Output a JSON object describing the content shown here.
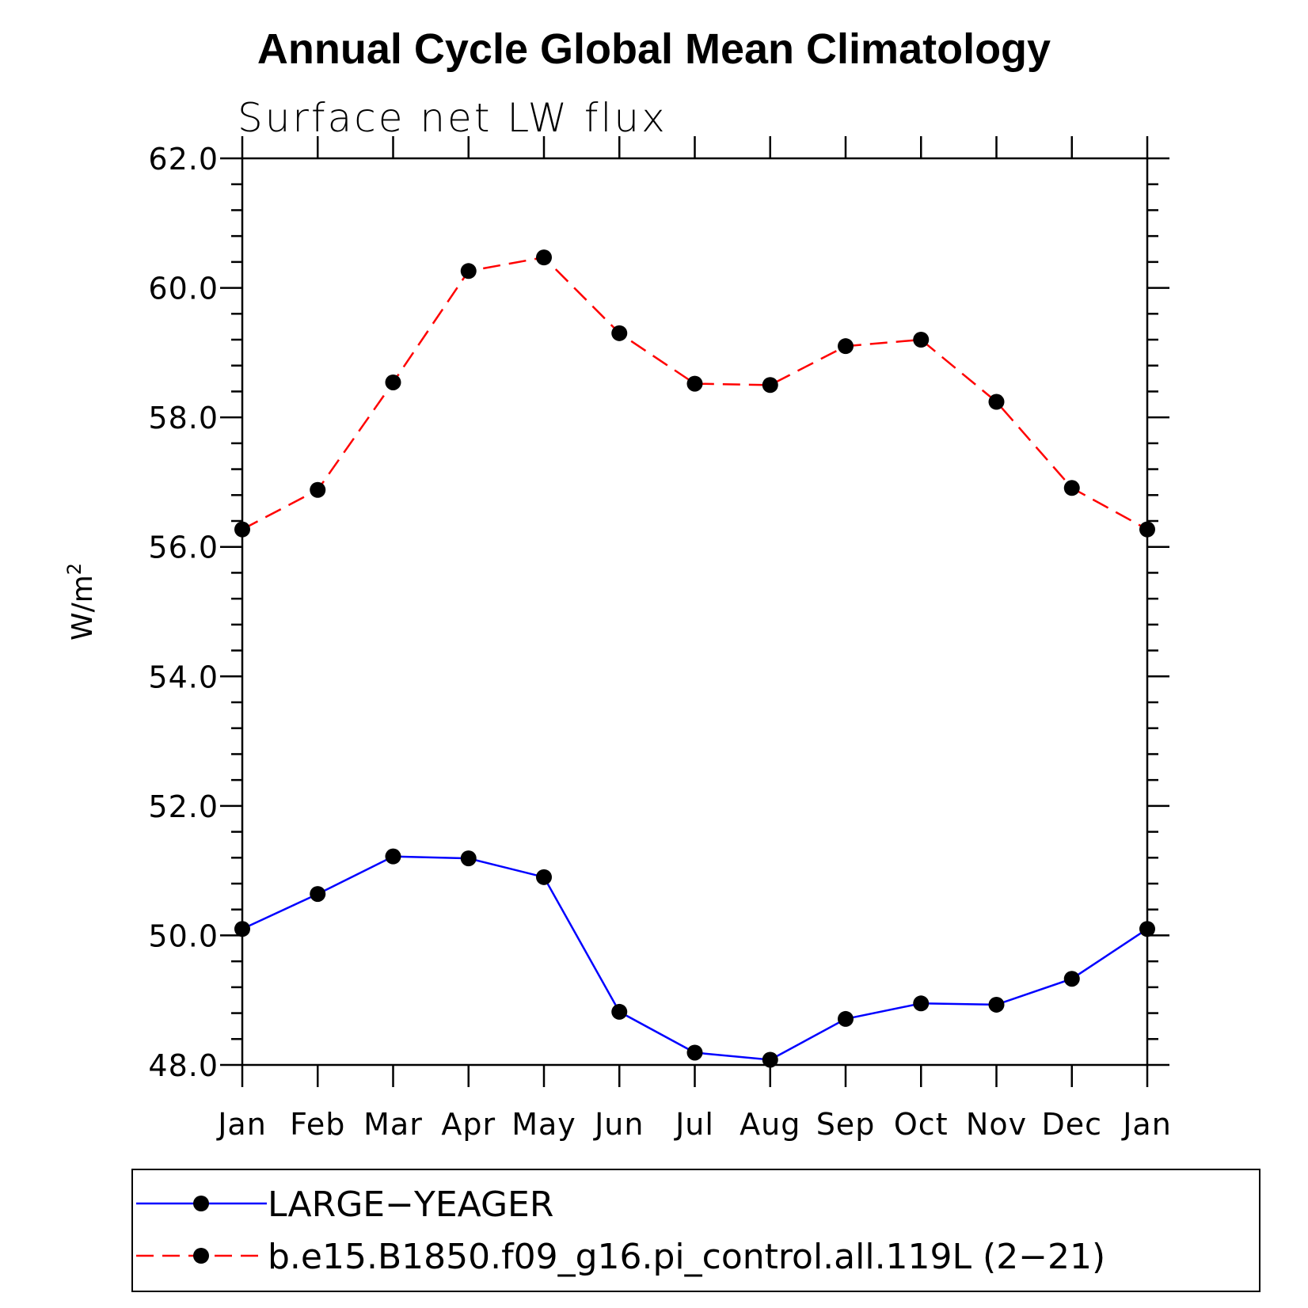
{
  "chart_data": {
    "type": "line",
    "title": "Annual Cycle Global Mean Climatology",
    "subtitle": "Surface net LW flux",
    "ylabel": "W/m",
    "ylabel_superscript": "2",
    "xlabel": "",
    "ylim": [
      48.0,
      62.0
    ],
    "yticks": [
      "48.0",
      "50.0",
      "52.0",
      "54.0",
      "56.0",
      "58.0",
      "60.0",
      "62.0"
    ],
    "categories": [
      "Jan",
      "Feb",
      "Mar",
      "Apr",
      "May",
      "Jun",
      "Jul",
      "Aug",
      "Sep",
      "Oct",
      "Nov",
      "Dec",
      "Jan"
    ],
    "grid": false,
    "legend_position": "bottom",
    "series": [
      {
        "name": "LARGE−YEAGER",
        "color": "#0000ff",
        "dash": "solid",
        "values": [
          50.1,
          50.64,
          51.22,
          51.19,
          50.9,
          48.82,
          48.19,
          48.08,
          48.71,
          48.95,
          48.93,
          49.33,
          50.1
        ]
      },
      {
        "name": "b.e15.B1850.f09_g16.pi_control.all.119L (2−21)",
        "color": "#ff0000",
        "dash": "dashed",
        "values": [
          56.27,
          56.88,
          58.54,
          60.26,
          60.47,
          59.3,
          58.52,
          58.5,
          59.1,
          59.2,
          58.24,
          56.91,
          56.27
        ]
      }
    ]
  }
}
